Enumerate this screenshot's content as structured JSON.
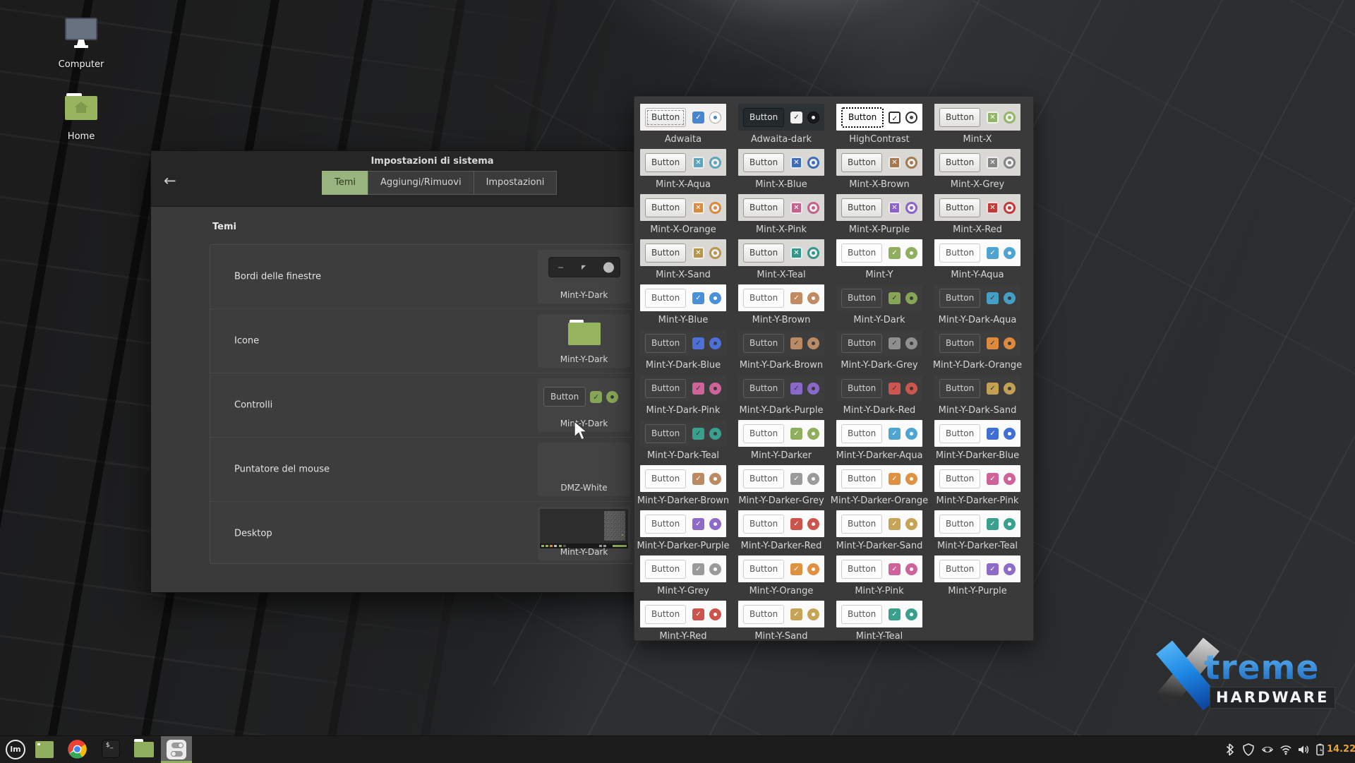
{
  "desktop": {
    "icons": [
      {
        "label": "Computer"
      },
      {
        "label": "Home"
      }
    ]
  },
  "settings_window": {
    "title": "Impostazioni di sistema",
    "back_icon": "arrow-left",
    "tabs": [
      {
        "label": "Temi",
        "active": true
      },
      {
        "label": "Aggiungi/Rimuovi",
        "active": false
      },
      {
        "label": "Impostazioni",
        "active": false
      }
    ],
    "section_title": "Temi",
    "accent_color": "#9ab480",
    "rows": [
      {
        "label": "Bordi delle finestre",
        "value": "Mint-Y-Dark"
      },
      {
        "label": "Icone",
        "value": "Mint-Y-Dark"
      },
      {
        "label": "Controlli",
        "value": "Mint-Y-Dark",
        "button_label": "Button"
      },
      {
        "label": "Puntatore del mouse",
        "value": "DMZ-White"
      },
      {
        "label": "Desktop",
        "value": "Mint-Y-Dark"
      }
    ]
  },
  "theme_picker": {
    "button_label": "Button",
    "themes": [
      {
        "name": "Adwaita",
        "style": "adwaita",
        "accent": "#4a86cf"
      },
      {
        "name": "Adwaita-dark",
        "style": "adwaita-dark",
        "accent": "#f0f0f0"
      },
      {
        "name": "HighContrast",
        "style": "highcontrast",
        "accent": "#2e2e2e"
      },
      {
        "name": "Mint-X",
        "style": "mintx",
        "accent": "#93b567"
      },
      {
        "name": "Mint-X-Aqua",
        "style": "mintx",
        "accent": "#5fa4bd"
      },
      {
        "name": "Mint-X-Blue",
        "style": "mintx",
        "accent": "#3f6cb4"
      },
      {
        "name": "Mint-X-Brown",
        "style": "mintx",
        "accent": "#a5794d"
      },
      {
        "name": "Mint-X-Grey",
        "style": "mintx",
        "accent": "#848484"
      },
      {
        "name": "Mint-X-Orange",
        "style": "mintx",
        "accent": "#d98a3f"
      },
      {
        "name": "Mint-X-Pink",
        "style": "mintx",
        "accent": "#c2638f"
      },
      {
        "name": "Mint-X-Purple",
        "style": "mintx",
        "accent": "#8a62c9"
      },
      {
        "name": "Mint-X-Red",
        "style": "mintx",
        "accent": "#c03a38"
      },
      {
        "name": "Mint-X-Sand",
        "style": "mintx",
        "accent": "#b5964a"
      },
      {
        "name": "Mint-X-Teal",
        "style": "mintx",
        "accent": "#36948a"
      },
      {
        "name": "Mint-Y",
        "style": "minty",
        "accent": "#8fae5e"
      },
      {
        "name": "Mint-Y-Aqua",
        "style": "minty",
        "accent": "#4fa5d2"
      },
      {
        "name": "Mint-Y-Blue",
        "style": "minty",
        "accent": "#4a90d9"
      },
      {
        "name": "Mint-Y-Brown",
        "style": "minty",
        "accent": "#c08b63"
      },
      {
        "name": "Mint-Y-Dark",
        "style": "minty-dark",
        "accent": "#87a556"
      },
      {
        "name": "Mint-Y-Dark-Aqua",
        "style": "minty-dark",
        "accent": "#459ec4"
      },
      {
        "name": "Mint-Y-Dark-Blue",
        "style": "minty-dark",
        "accent": "#4c6fd8"
      },
      {
        "name": "Mint-Y-Dark-Brown",
        "style": "minty-dark",
        "accent": "#b98a63"
      },
      {
        "name": "Mint-Y-Dark-Grey",
        "style": "minty-dark",
        "accent": "#8f8f8f"
      },
      {
        "name": "Mint-Y-Dark-Orange",
        "style": "minty-dark",
        "accent": "#dd8a3d"
      },
      {
        "name": "Mint-Y-Dark-Pink",
        "style": "minty-dark",
        "accent": "#cf649a"
      },
      {
        "name": "Mint-Y-Dark-Purple",
        "style": "minty-dark",
        "accent": "#8a68c9"
      },
      {
        "name": "Mint-Y-Dark-Red",
        "style": "minty-dark",
        "accent": "#cc554e"
      },
      {
        "name": "Mint-Y-Dark-Sand",
        "style": "minty-dark",
        "accent": "#c3a153"
      },
      {
        "name": "Mint-Y-Dark-Teal",
        "style": "minty-dark",
        "accent": "#38a08d"
      },
      {
        "name": "Mint-Y-Darker",
        "style": "minty",
        "accent": "#8fae5e"
      },
      {
        "name": "Mint-Y-Darker-Aqua",
        "style": "minty",
        "accent": "#4fa5d2"
      },
      {
        "name": "Mint-Y-Darker-Blue",
        "style": "minty",
        "accent": "#3f6fd4"
      },
      {
        "name": "Mint-Y-Darker-Brown",
        "style": "minty",
        "accent": "#bc8a60"
      },
      {
        "name": "Mint-Y-Darker-Grey",
        "style": "minty",
        "accent": "#9a9a9a"
      },
      {
        "name": "Mint-Y-Darker-Orange",
        "style": "minty",
        "accent": "#e0913f"
      },
      {
        "name": "Mint-Y-Darker-Pink",
        "style": "minty",
        "accent": "#d0629a"
      },
      {
        "name": "Mint-Y-Darker-Purple",
        "style": "minty",
        "accent": "#8d6bc7"
      },
      {
        "name": "Mint-Y-Darker-Red",
        "style": "minty",
        "accent": "#cc544c"
      },
      {
        "name": "Mint-Y-Darker-Sand",
        "style": "minty",
        "accent": "#c7a455"
      },
      {
        "name": "Mint-Y-Darker-Teal",
        "style": "minty",
        "accent": "#38a08d"
      },
      {
        "name": "Mint-Y-Grey",
        "style": "minty",
        "accent": "#9a9a9a"
      },
      {
        "name": "Mint-Y-Orange",
        "style": "minty",
        "accent": "#e0913f"
      },
      {
        "name": "Mint-Y-Pink",
        "style": "minty",
        "accent": "#d0629a"
      },
      {
        "name": "Mint-Y-Purple",
        "style": "minty",
        "accent": "#8d6bc7"
      },
      {
        "name": "Mint-Y-Red",
        "style": "minty",
        "accent": "#cc544c"
      },
      {
        "name": "Mint-Y-Sand",
        "style": "minty",
        "accent": "#c7a455"
      },
      {
        "name": "Mint-Y-Teal",
        "style": "minty",
        "accent": "#38a08d"
      }
    ]
  },
  "taskbar": {
    "left_icons": [
      "mint-menu",
      "show-desktop",
      "chrome",
      "terminal",
      "files",
      "system-settings"
    ],
    "active_icon": "system-settings",
    "tray_icons": [
      "bluetooth",
      "shield",
      "nvidia",
      "wifi",
      "volume",
      "battery"
    ],
    "clock": "14.22",
    "clock_color": "#e2a33c",
    "accent_underline": "#8fae5e"
  },
  "logo": {
    "line1": "treme",
    "line2": "HARDWARE"
  }
}
